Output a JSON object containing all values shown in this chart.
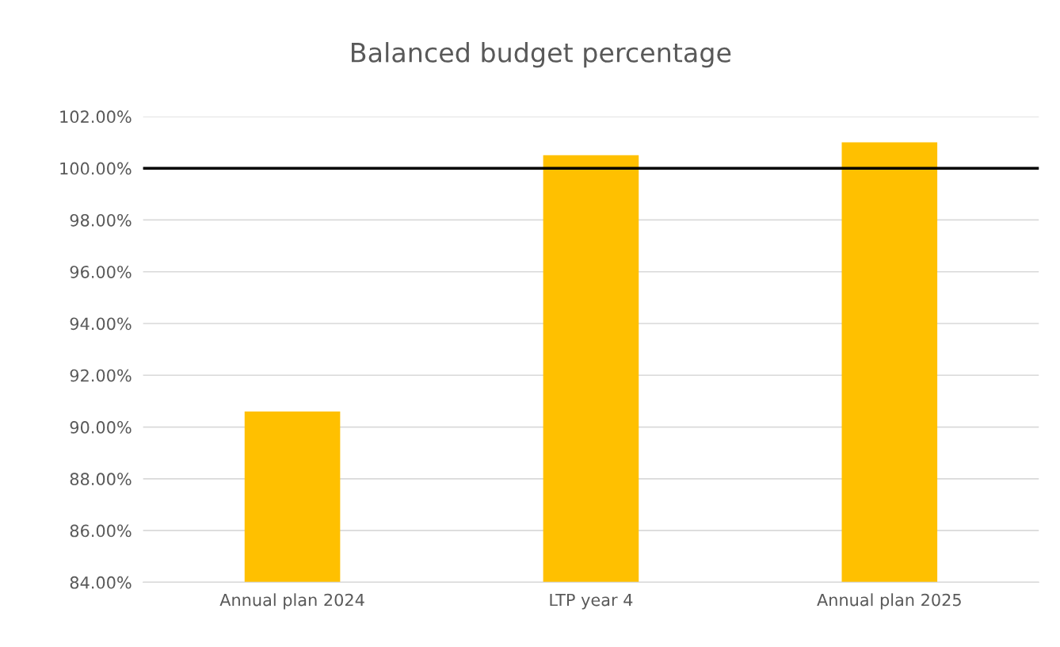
{
  "chart_data": {
    "type": "bar",
    "title": "Balanced budget percentage",
    "categories": [
      "Annual plan 2024",
      "LTP year 4",
      "Annual plan 2025"
    ],
    "values": [
      90.6,
      100.5,
      101.0
    ],
    "color": "#ffc000",
    "ylim": [
      84,
      102
    ],
    "yticks": [
      {
        "value": 84,
        "label": "84.00%"
      },
      {
        "value": 86,
        "label": "86.00%"
      },
      {
        "value": 88,
        "label": "88.00%"
      },
      {
        "value": 90,
        "label": "90.00%"
      },
      {
        "value": 92,
        "label": "92.00%"
      },
      {
        "value": 94,
        "label": "94.00%"
      },
      {
        "value": 96,
        "label": "96.00%"
      },
      {
        "value": 98,
        "label": "98.00%"
      },
      {
        "value": 100,
        "label": "100.00%"
      },
      {
        "value": 102,
        "label": "102.00%"
      }
    ],
    "grid": "y",
    "ref_lines": [
      {
        "axis": "y",
        "value": 100,
        "color": "#000000",
        "line_style": "solid"
      }
    ]
  }
}
